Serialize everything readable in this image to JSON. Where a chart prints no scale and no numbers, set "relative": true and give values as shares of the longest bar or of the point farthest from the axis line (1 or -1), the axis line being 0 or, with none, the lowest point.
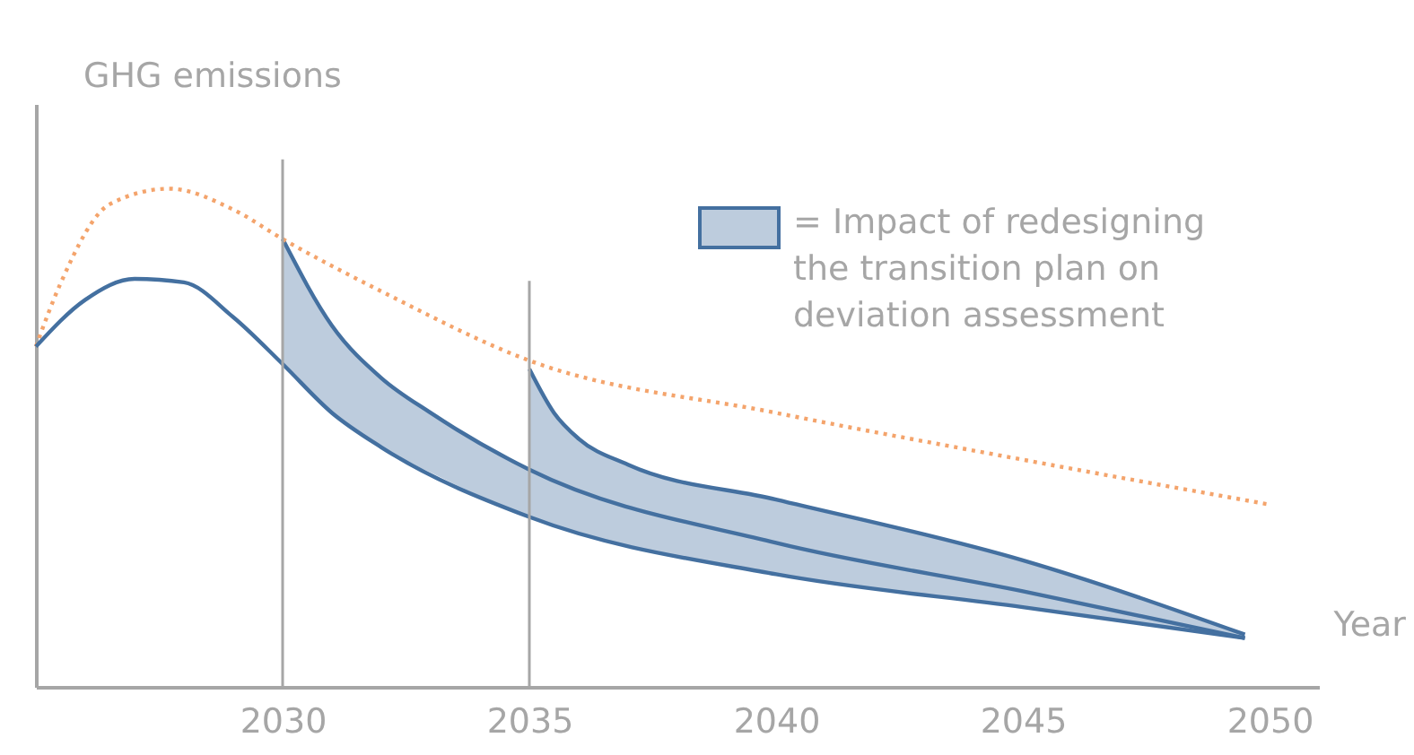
{
  "chart_data": {
    "type": "line",
    "relative": true,
    "ylabel": "GHG emissions",
    "xlabel": "Year",
    "xlim": [
      2025,
      2051
    ],
    "xticks": [
      2030,
      2035,
      2040,
      2045,
      2050
    ],
    "grid": false,
    "legend": "top right",
    "marker": "none",
    "series": [
      {
        "name": "= Impact of redesigning the transition plan on deviation assessment",
        "color": "#4470a0",
        "line_style": "solid",
        "x": [
          2030,
          2031,
          2032,
          2033,
          2035,
          2040,
          2045,
          2049.5
        ],
        "values": [
          0.899,
          0.725,
          0.62,
          0.55,
          0.436,
          0.289,
          0.192,
          0.098
        ],
        "lower": [
          0.648,
          0.55,
          0.481,
          0.43,
          0.341,
          0.226,
          0.16,
          0.098
        ],
        "upper": [
          0.899,
          0.725,
          0.62,
          0.55,
          0.436,
          0.289,
          0.192,
          0.098
        ]
      },
      {
        "color": "#4470a0",
        "line_style": "solid",
        "x": [
          2035,
          2035.5,
          2036,
          2037,
          2040,
          2045,
          2049.5
        ],
        "values": [
          0.638,
          0.55,
          0.498,
          0.446,
          0.376,
          0.254,
          0.105
        ],
        "lower": [
          0.436,
          0.415,
          0.395,
          0.36,
          0.289,
          0.192,
          0.098
        ],
        "upper": [
          0.638,
          0.55,
          0.498,
          0.446,
          0.376,
          0.254,
          0.105
        ]
      },
      {
        "color": "#f4a46c",
        "line_style": "dotted",
        "x": [
          2025,
          2025.5,
          2026.5,
          2027.7,
          2029,
          2030,
          2032,
          2035,
          2040,
          2045,
          2050
        ],
        "values": [
          0.683,
          0.81,
          0.969,
          1.0,
          0.958,
          0.899,
          0.794,
          0.655,
          0.55,
          0.456,
          0.366
        ]
      },
      {
        "color": "#4470a0",
        "line_style": "solid",
        "x": [
          2025,
          2026,
          2027,
          2028,
          2029,
          2030,
          2031,
          2032,
          2035,
          2040,
          2045,
          2049.5
        ],
        "values": [
          0.683,
          0.777,
          0.819,
          0.812,
          0.742,
          0.648,
          0.55,
          0.481,
          0.341,
          0.226,
          0.16,
          0.098
        ]
      }
    ],
    "ref_lines": [
      {
        "axis": "x",
        "value": 2030,
        "color": "#a6a6a6"
      },
      {
        "axis": "x",
        "value": 2035,
        "color": "#a6a6a6"
      }
    ]
  }
}
